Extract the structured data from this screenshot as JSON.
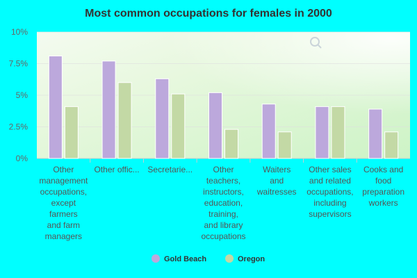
{
  "colors": {
    "page_background": "#00ffff",
    "gold_beach": "#bca8dc",
    "oregon": "#c3d9a5",
    "gridline": "#dddddd"
  },
  "chart_data": {
    "type": "bar",
    "title": "Most common occupations for females in 2000",
    "xlabel": "",
    "ylabel": "",
    "ylim": [
      0,
      10
    ],
    "y_ticks": [
      "0%",
      "2.5%",
      "5%",
      "7.5%",
      "10%"
    ],
    "y_tick_values": [
      0,
      2.5,
      5,
      7.5,
      10
    ],
    "grid": true,
    "legend_position": "bottom",
    "categories": [
      [
        "Other",
        "management",
        "occupations,",
        "except",
        "farmers",
        "and farm",
        "managers"
      ],
      [
        "Other offic..."
      ],
      [
        "Secretarie..."
      ],
      [
        "Other",
        "teachers,",
        "instructors,",
        "education,",
        "training,",
        "and library",
        "occupations"
      ],
      [
        "Waiters",
        "and",
        "waitresses"
      ],
      [
        "Other sales",
        "and related",
        "occupations,",
        "including",
        "supervisors"
      ],
      [
        "Cooks and",
        "food",
        "preparation",
        "workers"
      ]
    ],
    "series": [
      {
        "name": "Gold Beach",
        "color": "#bca8dc",
        "values": [
          8.1,
          7.7,
          6.3,
          5.2,
          4.3,
          4.1,
          3.9
        ]
      },
      {
        "name": "Oregon",
        "color": "#c3d9a5",
        "values": [
          4.1,
          6.0,
          5.1,
          2.3,
          2.1,
          4.1,
          2.1
        ]
      }
    ]
  }
}
